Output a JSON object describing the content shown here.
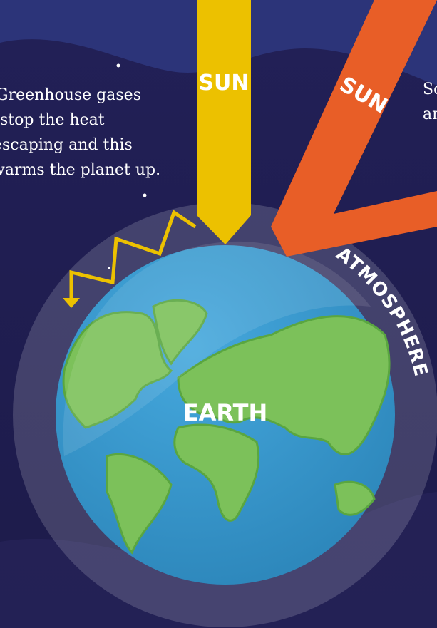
{
  "left_text": {
    "lines": [
      "Greenhouse gases",
      "stop the heat",
      "escaping and this",
      "warms the planet up."
    ]
  },
  "right_text": {
    "lines": [
      "So",
      "an"
    ]
  },
  "labels": {
    "sun_direct": "SUN",
    "sun_angled": "SUN",
    "atmosphere": "ATMOSPHERE",
    "earth": "EARTH"
  }
}
